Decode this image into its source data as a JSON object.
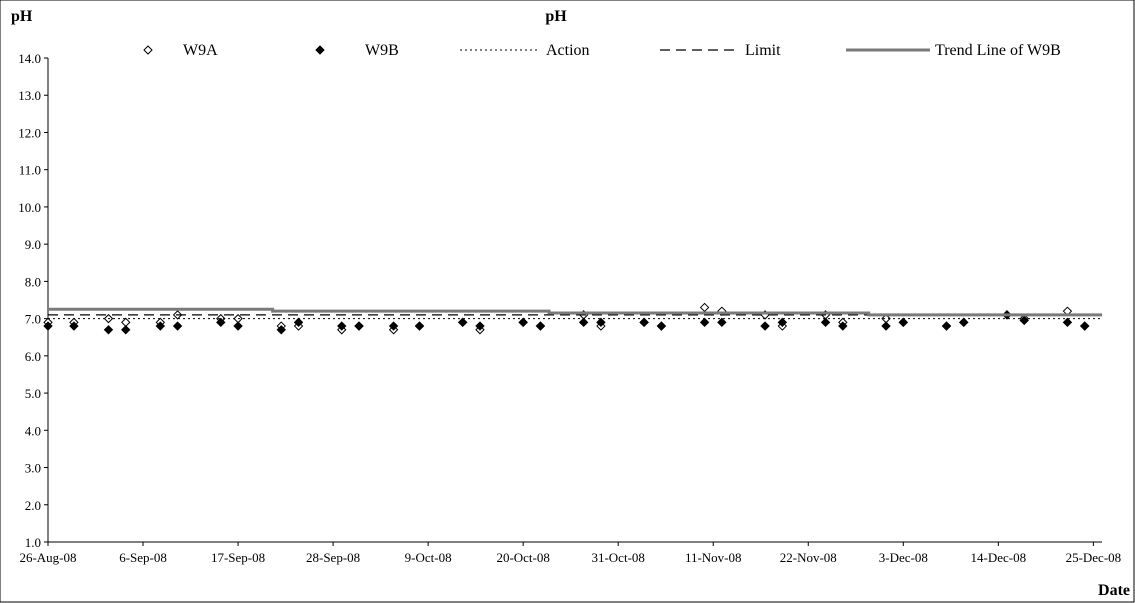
{
  "chart_data": {
    "type": "scatter",
    "title": "pH",
    "ylabel": "pH",
    "xlabel": "Date",
    "ylim": [
      1.0,
      14.0
    ],
    "yticks": [
      "1.0",
      "2.0",
      "3.0",
      "4.0",
      "5.0",
      "6.0",
      "7.0",
      "8.0",
      "9.0",
      "10.0",
      "11.0",
      "12.0",
      "13.0",
      "14.0"
    ],
    "xlim": [
      "2008-08-26",
      "2008-12-26"
    ],
    "xticks": [
      "26-Aug-08",
      "6-Sep-08",
      "17-Sep-08",
      "28-Sep-08",
      "9-Oct-08",
      "20-Oct-08",
      "31-Oct-08",
      "11-Nov-08",
      "22-Nov-08",
      "3-Dec-08",
      "14-Dec-08",
      "25-Dec-08"
    ],
    "grid": false,
    "legend_position": "top",
    "series": [
      {
        "name": "W9A",
        "marker": "diamond-open",
        "color": "#000000",
        "x": [
          "2008-08-26",
          "2008-08-29",
          "2008-09-02",
          "2008-09-04",
          "2008-09-08",
          "2008-09-10",
          "2008-09-15",
          "2008-09-17",
          "2008-09-22",
          "2008-09-24",
          "2008-09-29",
          "2008-10-01",
          "2008-10-05",
          "2008-10-08",
          "2008-10-13",
          "2008-10-15",
          "2008-10-20",
          "2008-10-22",
          "2008-10-27",
          "2008-10-29",
          "2008-11-03",
          "2008-11-05",
          "2008-11-10",
          "2008-11-12",
          "2008-11-17",
          "2008-11-19",
          "2008-11-24",
          "2008-11-26",
          "2008-12-01",
          "2008-12-03",
          "2008-12-08",
          "2008-12-10",
          "2008-12-15",
          "2008-12-17",
          "2008-12-22",
          "2008-12-24"
        ],
        "y": [
          6.9,
          6.9,
          7.0,
          6.9,
          6.9,
          7.1,
          7.0,
          7.0,
          6.8,
          6.8,
          6.7,
          6.8,
          6.7,
          6.8,
          6.9,
          6.7,
          6.9,
          6.8,
          7.1,
          6.8,
          6.9,
          6.8,
          7.3,
          7.2,
          7.1,
          6.8,
          7.1,
          6.9,
          7.0,
          6.9,
          6.8,
          6.9,
          7.1,
          7.0,
          7.2,
          6.8
        ]
      },
      {
        "name": "W9B",
        "marker": "diamond-filled",
        "color": "#000000",
        "x": [
          "2008-08-26",
          "2008-08-29",
          "2008-09-02",
          "2008-09-04",
          "2008-09-08",
          "2008-09-10",
          "2008-09-15",
          "2008-09-17",
          "2008-09-22",
          "2008-09-24",
          "2008-09-29",
          "2008-10-01",
          "2008-10-05",
          "2008-10-08",
          "2008-10-13",
          "2008-10-15",
          "2008-10-20",
          "2008-10-22",
          "2008-10-27",
          "2008-10-29",
          "2008-11-03",
          "2008-11-05",
          "2008-11-10",
          "2008-11-12",
          "2008-11-17",
          "2008-11-19",
          "2008-11-24",
          "2008-11-26",
          "2008-12-01",
          "2008-12-03",
          "2008-12-08",
          "2008-12-10",
          "2008-12-15",
          "2008-12-17",
          "2008-12-22",
          "2008-12-24"
        ],
        "y": [
          6.8,
          6.8,
          6.7,
          6.7,
          6.8,
          6.8,
          6.9,
          6.8,
          6.7,
          6.9,
          6.8,
          6.8,
          6.8,
          6.8,
          6.9,
          6.8,
          6.9,
          6.8,
          6.9,
          6.9,
          6.9,
          6.8,
          6.9,
          6.9,
          6.8,
          6.9,
          6.9,
          6.8,
          6.8,
          6.9,
          6.8,
          6.9,
          7.1,
          6.95,
          6.9,
          6.8
        ]
      },
      {
        "name": "Action",
        "line": "dotted",
        "color": "#000000",
        "x": [
          "2008-08-26",
          "2008-12-26"
        ],
        "y": [
          7.0,
          7.0
        ]
      },
      {
        "name": "Limit",
        "line": "dashed",
        "color": "#000000",
        "x": [
          "2008-08-26",
          "2008-12-26"
        ],
        "y": [
          7.1,
          7.1
        ]
      },
      {
        "name": "Trend Line of W9B",
        "line": "solid-thick",
        "color": "#7a7a7a",
        "x": [
          "2008-08-26",
          "2008-09-21",
          "2008-09-21",
          "2008-10-23",
          "2008-10-23",
          "2008-11-29",
          "2008-11-29",
          "2008-12-26"
        ],
        "y": [
          7.25,
          7.25,
          7.2,
          7.2,
          7.15,
          7.15,
          7.1,
          7.1
        ]
      }
    ]
  }
}
